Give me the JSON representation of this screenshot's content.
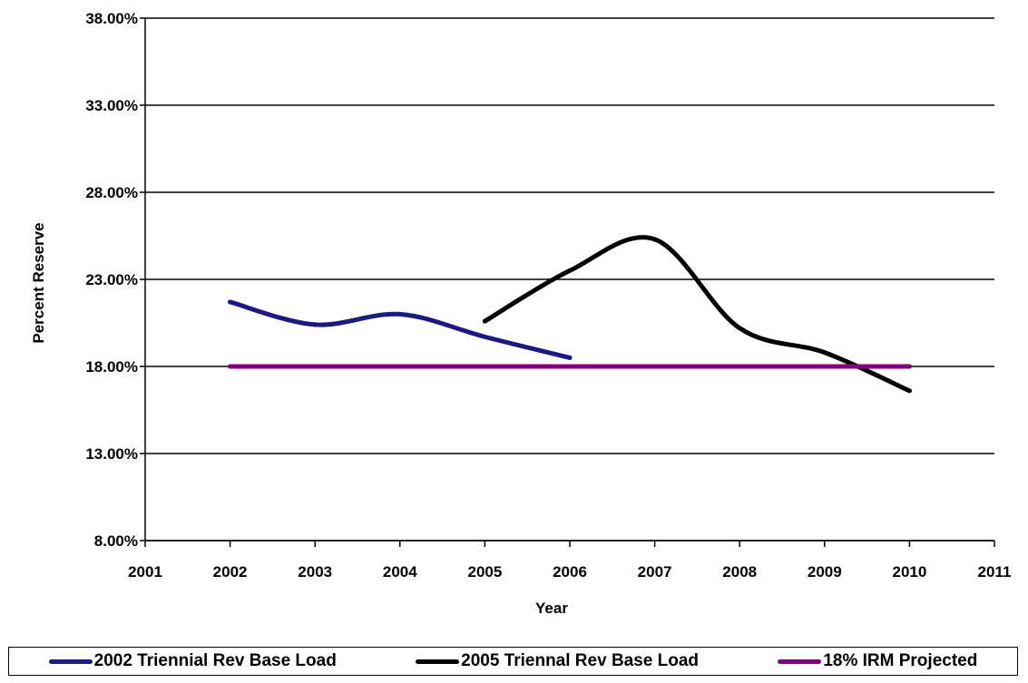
{
  "chart_data": {
    "type": "line",
    "xlabel": "Year",
    "ylabel": "Percent Reserve",
    "xlim": [
      2001,
      2011
    ],
    "ylim": [
      8,
      38
    ],
    "x_ticks": [
      "2001",
      "2002",
      "2003",
      "2004",
      "2005",
      "2006",
      "2007",
      "2008",
      "2009",
      "2010",
      "2011"
    ],
    "y_ticks": [
      {
        "value": 38,
        "label": "38.00%"
      },
      {
        "value": 33,
        "label": "33.00%"
      },
      {
        "value": 28,
        "label": "28.00%"
      },
      {
        "value": 23,
        "label": "23.00%"
      },
      {
        "value": 18,
        "label": "18.00%"
      },
      {
        "value": 13,
        "label": "13.00%"
      },
      {
        "value": 8,
        "label": "8.00%"
      }
    ],
    "grid": "horizontal",
    "legend_position": "bottom",
    "series": [
      {
        "name": "2002 Triennial Rev Base Load",
        "color": "#1a1a80",
        "x": [
          2002,
          2003,
          2004,
          2005,
          2006
        ],
        "y": [
          21.7,
          20.4,
          21.0,
          19.7,
          18.5
        ]
      },
      {
        "name": "2005 Triennal Rev Base Load",
        "color": "#000000",
        "x": [
          2005,
          2006,
          2007,
          2008,
          2009,
          2010
        ],
        "y": [
          20.6,
          23.5,
          25.3,
          20.2,
          18.8,
          16.6
        ]
      },
      {
        "name": "18% IRM Projected",
        "color": "#800080",
        "x": [
          2002,
          2010
        ],
        "y": [
          18.0,
          18.0
        ]
      }
    ]
  }
}
